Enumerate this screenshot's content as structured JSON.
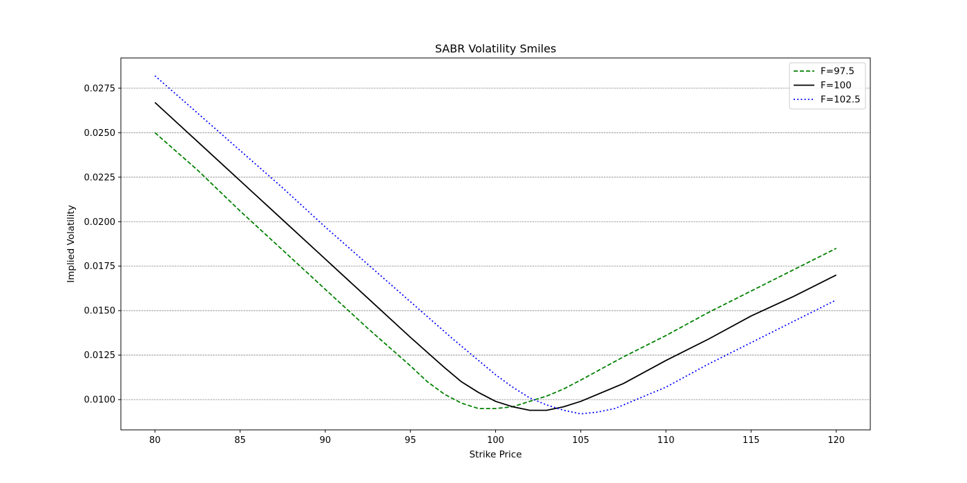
{
  "chart_data": {
    "type": "line",
    "title": "SABR Volatility Smiles",
    "xlabel": "Strike Price",
    "ylabel": "Implied Volatility",
    "xlim": [
      78,
      122
    ],
    "ylim": [
      0.0083,
      0.0292
    ],
    "xticks": [
      80,
      85,
      90,
      95,
      100,
      105,
      110,
      115,
      120
    ],
    "xtick_labels": [
      "80",
      "85",
      "90",
      "95",
      "100",
      "105",
      "110",
      "115",
      "120"
    ],
    "yticks": [
      0.01,
      0.0125,
      0.015,
      0.0175,
      0.02,
      0.0225,
      0.025,
      0.0275
    ],
    "ytick_labels": [
      "0.0100",
      "0.0125",
      "0.0150",
      "0.0175",
      "0.0200",
      "0.0225",
      "0.0250",
      "0.0275"
    ],
    "grid": "horizontal dashed",
    "legend_position": "upper right",
    "series": [
      {
        "name": "F=97.5",
        "color": "#008000",
        "style": "dashed",
        "x": [
          80,
          82.5,
          85,
          87.5,
          90,
          92.5,
          95,
          96,
          97,
          98,
          99,
          100,
          101,
          102,
          103,
          104,
          105,
          107.5,
          110,
          112.5,
          115,
          117.5,
          120
        ],
        "y": [
          0.025,
          0.0229,
          0.0206,
          0.0184,
          0.0162,
          0.014,
          0.0119,
          0.011,
          0.0103,
          0.0098,
          0.0095,
          0.0095,
          0.0096,
          0.0099,
          0.0102,
          0.0106,
          0.0111,
          0.0124,
          0.0136,
          0.0149,
          0.0161,
          0.0173,
          0.0185
        ]
      },
      {
        "name": "F=100",
        "color": "#000000",
        "style": "solid",
        "x": [
          80,
          82.5,
          85,
          87.5,
          90,
          92.5,
          95,
          97,
          98,
          99,
          100,
          101,
          102,
          102.5,
          103,
          104,
          105,
          107.5,
          110,
          112.5,
          115,
          117.5,
          120
        ],
        "y": [
          0.0267,
          0.0245,
          0.0223,
          0.0201,
          0.0179,
          0.0157,
          0.0135,
          0.0118,
          0.011,
          0.0104,
          0.0099,
          0.0096,
          0.0094,
          0.0094,
          0.0094,
          0.0096,
          0.0099,
          0.0109,
          0.0122,
          0.0134,
          0.0147,
          0.0158,
          0.017
        ]
      },
      {
        "name": "F=102.5",
        "color": "#0000ff",
        "style": "dotted",
        "x": [
          80,
          82.5,
          85,
          87.5,
          90,
          92.5,
          95,
          97.5,
          99,
          100,
          101,
          102,
          103,
          104,
          105,
          106,
          107,
          110,
          112.5,
          115,
          117.5,
          120
        ],
        "y": [
          0.0282,
          0.0261,
          0.024,
          0.0219,
          0.0197,
          0.0176,
          0.0155,
          0.0134,
          0.0122,
          0.0114,
          0.0107,
          0.0101,
          0.0097,
          0.0094,
          0.0092,
          0.0093,
          0.0095,
          0.0107,
          0.012,
          0.0132,
          0.0144,
          0.0156
        ]
      }
    ]
  }
}
